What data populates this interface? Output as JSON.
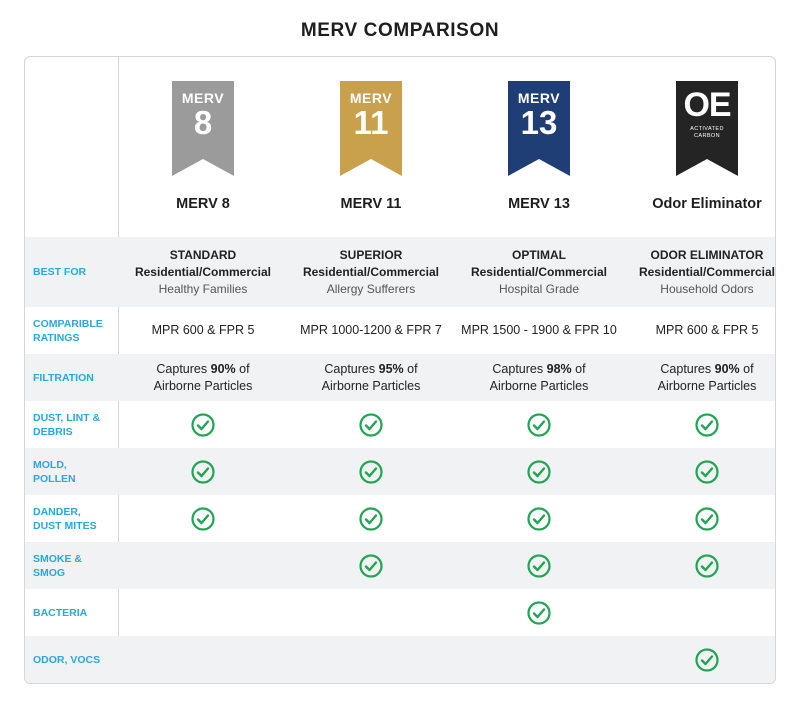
{
  "title": "MERV COMPARISON",
  "colors": {
    "label": "#29a8df",
    "check": "#21a553"
  },
  "columns": [
    {
      "badge_top": "MERV",
      "badge_num": "8",
      "name": "MERV 8",
      "badge_color": "#9b9b9b"
    },
    {
      "badge_top": "MERV",
      "badge_num": "11",
      "name": "MERV 11",
      "badge_color": "#c9a04c"
    },
    {
      "badge_top": "MERV",
      "badge_num": "13",
      "name": "MERV 13",
      "badge_color": "#1f3e76"
    },
    {
      "badge_top": "OE",
      "badge_sub1": "ACTIVATED",
      "badge_sub2": "CARBON",
      "name": "Odor Eliminator",
      "badge_color": "#242424"
    }
  ],
  "rows": {
    "best_for": {
      "label": "BEST FOR",
      "cells": [
        {
          "title": "STANDARD",
          "sub": "Residential/Commercial",
          "note": "Healthy Families"
        },
        {
          "title": "SUPERIOR",
          "sub": "Residential/Commercial",
          "note": "Allergy Sufferers"
        },
        {
          "title": "OPTIMAL",
          "sub": "Residential/Commercial",
          "note": "Hospital Grade"
        },
        {
          "title": "ODOR ELIMINATOR",
          "sub": "Residential/Commercial",
          "note": "Household Odors"
        }
      ]
    },
    "ratings": {
      "label_1": "COMPARIBLE",
      "label_2": "RATINGS",
      "cells": [
        "MPR 600 & FPR 5",
        "MPR 1000-1200 & FPR 7",
        "MPR 1500 - 1900 & FPR 10",
        "MPR 600 & FPR 5"
      ]
    },
    "filtration": {
      "label": "FILTRATION",
      "prefix": "Captures",
      "suffix_1": "of",
      "suffix_2": "Airborne Particles",
      "values": [
        "90%",
        "95%",
        "98%",
        "90%"
      ]
    },
    "features": [
      {
        "label_1": "DUST, LINT &",
        "label_2": "DEBRIS",
        "checks": [
          true,
          true,
          true,
          true
        ]
      },
      {
        "label_1": "MOLD,",
        "label_2": "POLLEN",
        "checks": [
          true,
          true,
          true,
          true
        ]
      },
      {
        "label_1": "DANDER,",
        "label_2": "DUST MITES",
        "checks": [
          true,
          true,
          true,
          true
        ]
      },
      {
        "label_1": "SMOKE &",
        "label_2": "SMOG",
        "checks": [
          false,
          true,
          true,
          true
        ]
      },
      {
        "label_1": "BACTERIA",
        "label_2": "",
        "checks": [
          false,
          false,
          true,
          false
        ]
      },
      {
        "label_1": "ODOR, VOCS",
        "label_2": "",
        "checks": [
          false,
          false,
          false,
          true
        ]
      }
    ]
  }
}
